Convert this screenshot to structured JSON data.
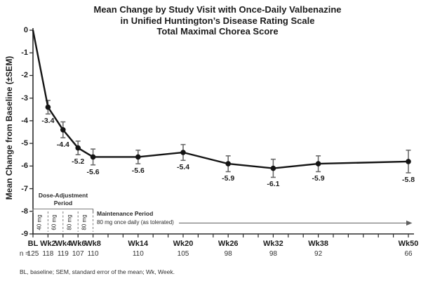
{
  "chart_data": {
    "type": "line",
    "title_lines": [
      "Mean Change by Study Visit with Once-Daily Valbenazine",
      "in Unified Huntington’s Disease Rating Scale",
      "Total Maximal Chorea Score"
    ],
    "ylabel": "Mean Change from Baseline (±SEM)",
    "ylim": [
      -9,
      0
    ],
    "yticks": [
      0,
      -1,
      -2,
      -3,
      -4,
      -5,
      -6,
      -7,
      -8,
      -9
    ],
    "week_range": [
      0,
      50
    ],
    "minor_tick_step_weeks": 2,
    "x_weeks": [
      0,
      2,
      4,
      6,
      8,
      14,
      20,
      26,
      32,
      38,
      50
    ],
    "categories": [
      "BL",
      "Wk2",
      "Wk4",
      "Wk6",
      "Wk8",
      "Wk14",
      "Wk20",
      "Wk26",
      "Wk32",
      "Wk38",
      "Wk50"
    ],
    "series": [
      {
        "name": "Mean change from baseline (±SEM)",
        "values": [
          0,
          -3.4,
          -4.4,
          -5.2,
          -5.6,
          -5.6,
          -5.4,
          -5.9,
          -6.1,
          -5.9,
          -5.8
        ],
        "sem_estimated": [
          0,
          0.3,
          0.35,
          0.3,
          0.35,
          0.3,
          0.35,
          0.35,
          0.4,
          0.35,
          0.5
        ]
      }
    ],
    "data_labels": [
      "",
      "-3.4",
      "-4.4",
      "-5.2",
      "-5.6",
      "-5.6",
      "-5.4",
      "-5.9",
      "-6.1",
      "-5.9",
      "-5.8"
    ],
    "n_row": {
      "prefix": "n =",
      "values": [
        "125",
        "118",
        "119",
        "107",
        "110",
        "110",
        "105",
        "98",
        "98",
        "92",
        "66"
      ]
    },
    "dose_adjustment_period": {
      "title_line1": "Dose-Adjustment",
      "title_line2": "Period",
      "doses": [
        "40 mg",
        "60 mg",
        "80 mg",
        "80 mg"
      ]
    },
    "maintenance_period": {
      "title": "Maintenance Period",
      "subtitle": "80 mg once daily (as tolerated)"
    },
    "footnote": "BL, baseline; SEM, standard error of the mean; Wk, Week.",
    "grid": false,
    "legend": "none",
    "colors": {
      "line": "#141414",
      "marker": "#141414",
      "error_bar": "#6b6b6b",
      "axis": "#2b2b2b",
      "annotation_gray": "#7a7a7a",
      "text": "#1c1c1c"
    }
  }
}
